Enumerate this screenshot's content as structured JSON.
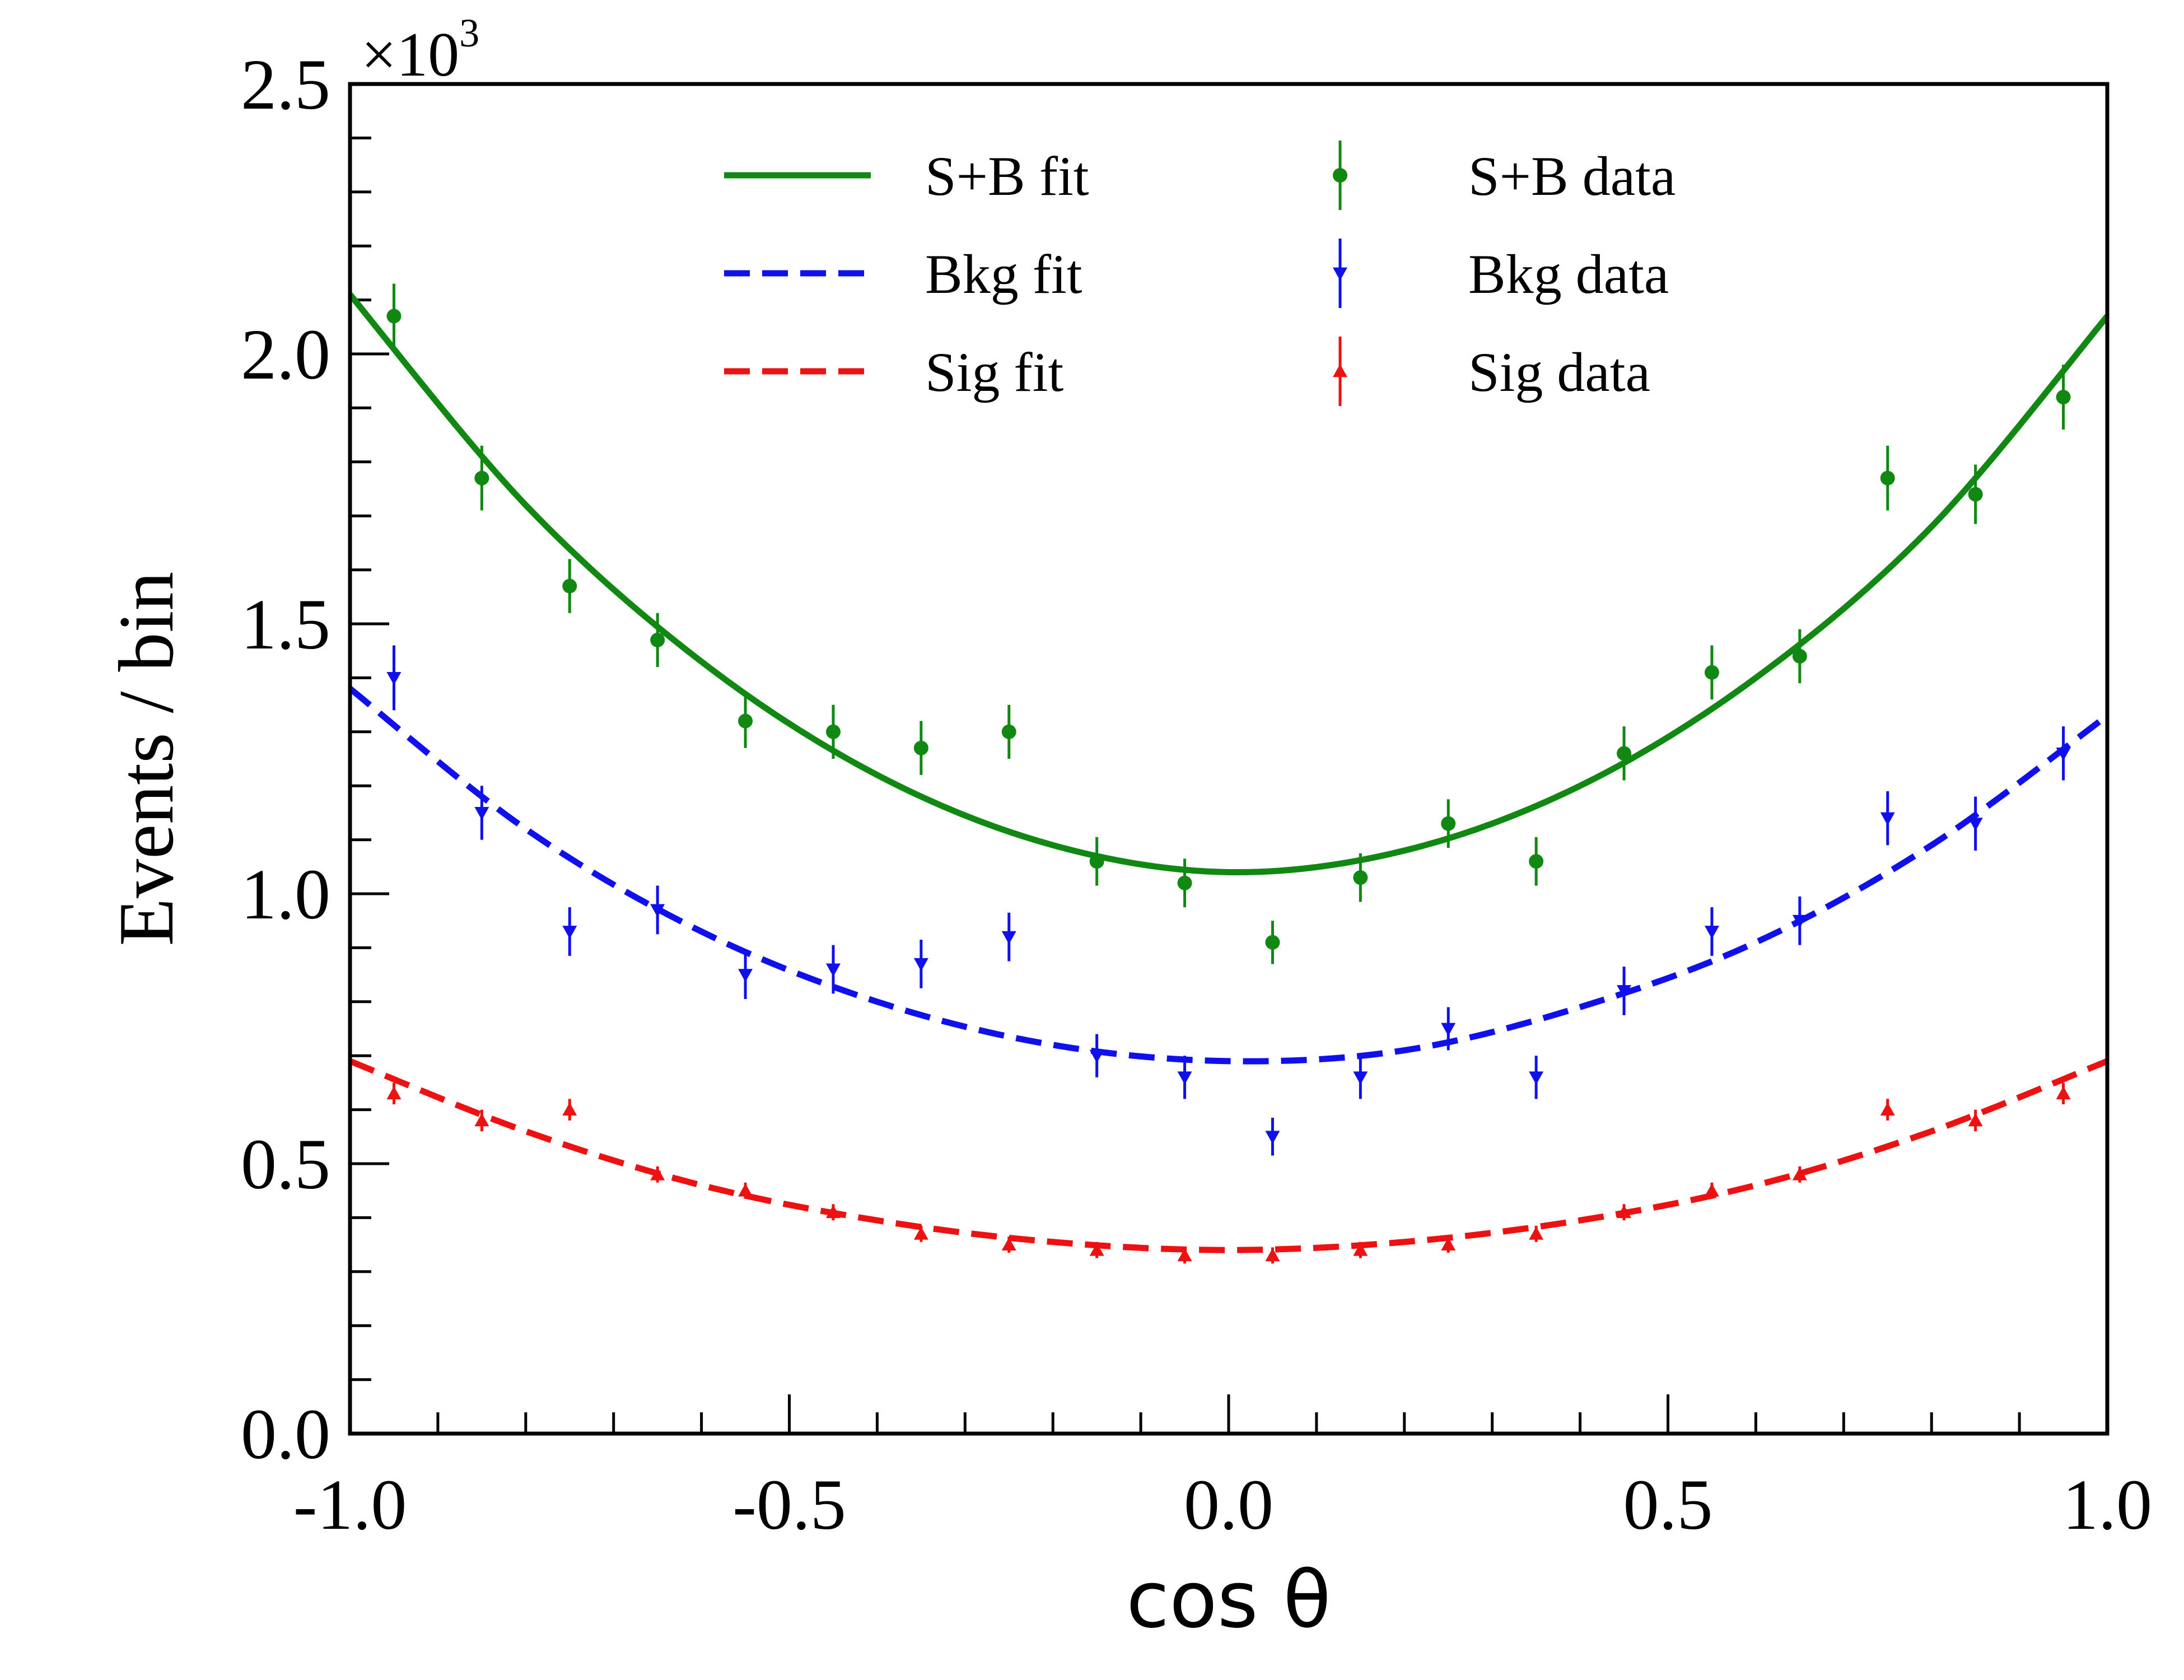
{
  "chart_data": {
    "type": "scatter",
    "title": "",
    "xlabel": "cos θ",
    "ylabel": "Events / bin",
    "y_multiplier": "×10",
    "y_multiplier_exponent": "3",
    "xlim": [
      -1.0,
      1.0
    ],
    "ylim": [
      0.0,
      2.5
    ],
    "x_ticks": [
      "-1.0",
      "-0.5",
      "0.0",
      "0.5",
      "1.0"
    ],
    "y_ticks": [
      "0.0",
      "0.5",
      "1.0",
      "1.5",
      "2.0",
      "2.5"
    ],
    "grid": false,
    "legend_position": "top",
    "x": [
      -0.95,
      -0.85,
      -0.75,
      -0.65,
      -0.55,
      -0.45,
      -0.35,
      -0.25,
      -0.15,
      -0.05,
      0.05,
      0.15,
      0.25,
      0.35,
      0.45,
      0.55,
      0.65,
      0.75,
      0.85,
      0.95
    ],
    "series": [
      {
        "name": "S+B data",
        "kind": "points",
        "marker": "circle",
        "color": "#118811",
        "values": [
          2.07,
          1.77,
          1.57,
          1.47,
          1.32,
          1.3,
          1.27,
          1.3,
          1.06,
          1.02,
          0.91,
          1.03,
          1.13,
          1.06,
          1.26,
          1.41,
          1.44,
          1.77,
          1.74,
          1.92
        ],
        "errors": [
          0.06,
          0.06,
          0.05,
          0.05,
          0.05,
          0.05,
          0.05,
          0.05,
          0.045,
          0.045,
          0.04,
          0.045,
          0.045,
          0.045,
          0.05,
          0.05,
          0.05,
          0.06,
          0.055,
          0.06
        ]
      },
      {
        "name": "Bkg data",
        "kind": "points",
        "marker": "triangle-down",
        "color": "#1010ee",
        "values": [
          1.4,
          1.15,
          0.93,
          0.97,
          0.85,
          0.86,
          0.87,
          0.92,
          0.7,
          0.66,
          0.55,
          0.66,
          0.75,
          0.66,
          0.82,
          0.93,
          0.95,
          1.14,
          1.13,
          1.26
        ],
        "errors": [
          0.06,
          0.05,
          0.045,
          0.045,
          0.045,
          0.045,
          0.045,
          0.045,
          0.04,
          0.04,
          0.035,
          0.04,
          0.04,
          0.04,
          0.045,
          0.045,
          0.045,
          0.05,
          0.05,
          0.05
        ]
      },
      {
        "name": "Sig data",
        "kind": "points",
        "marker": "triangle-up",
        "color": "#ee1111",
        "values": [
          0.63,
          0.58,
          0.6,
          0.48,
          0.45,
          0.41,
          0.37,
          0.35,
          0.34,
          0.33,
          0.33,
          0.34,
          0.35,
          0.37,
          0.41,
          0.45,
          0.48,
          0.6,
          0.58,
          0.63
        ],
        "errors": [
          0.02,
          0.02,
          0.02,
          0.015,
          0.015,
          0.015,
          0.015,
          0.015,
          0.015,
          0.015,
          0.015,
          0.015,
          0.015,
          0.015,
          0.015,
          0.015,
          0.015,
          0.02,
          0.02,
          0.02
        ]
      },
      {
        "name": "S+B fit",
        "kind": "curve",
        "style": "solid",
        "color": "#118811",
        "x": [
          -1.0,
          -0.8,
          -0.6,
          -0.4,
          -0.2,
          0.0,
          0.2,
          0.4,
          0.6,
          0.8,
          1.0
        ],
        "values": [
          2.11,
          1.72,
          1.43,
          1.22,
          1.09,
          1.04,
          1.08,
          1.2,
          1.4,
          1.68,
          2.07
        ]
      },
      {
        "name": "Bkg fit",
        "kind": "curve",
        "style": "dashed",
        "color": "#1010ee",
        "x": [
          -1.0,
          -0.8,
          -0.6,
          -0.4,
          -0.2,
          0.0,
          0.2,
          0.4,
          0.6,
          0.8,
          1.0
        ],
        "values": [
          1.38,
          1.12,
          0.93,
          0.8,
          0.72,
          0.69,
          0.71,
          0.79,
          0.91,
          1.09,
          1.33
        ]
      },
      {
        "name": "Sig fit",
        "kind": "curve",
        "style": "dashed",
        "color": "#ee1111",
        "x": [
          -1.0,
          -0.8,
          -0.6,
          -0.4,
          -0.2,
          0.0,
          0.2,
          0.4,
          0.6,
          0.8,
          1.0
        ],
        "values": [
          0.69,
          0.56,
          0.46,
          0.395,
          0.355,
          0.34,
          0.355,
          0.395,
          0.46,
          0.56,
          0.69
        ]
      }
    ]
  }
}
